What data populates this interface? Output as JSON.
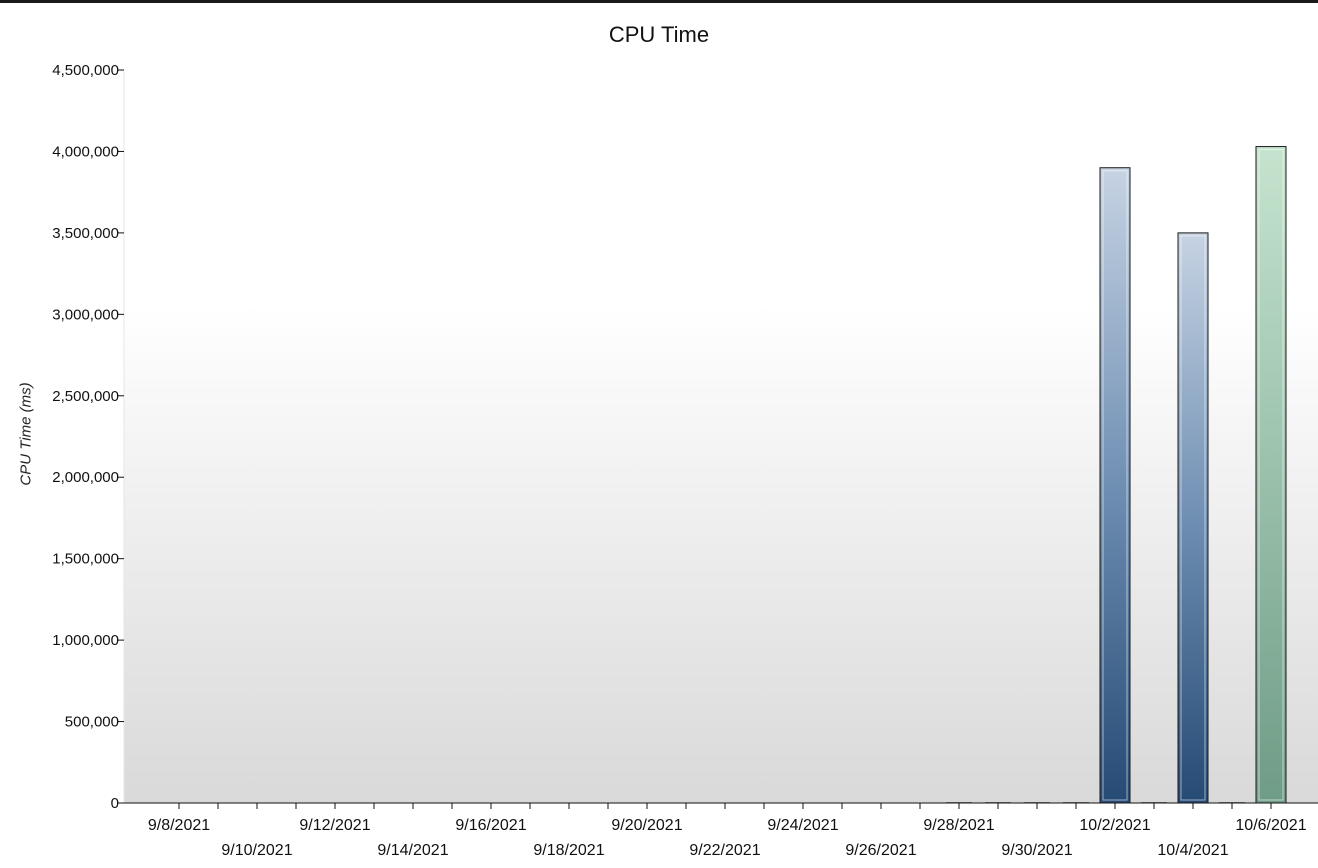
{
  "chart_data": {
    "type": "bar",
    "title": "CPU Time",
    "xlabel": "",
    "ylabel": "CPU Time (ms)",
    "ylim": [
      0,
      4500000
    ],
    "yticks": [
      0,
      500000,
      1000000,
      1500000,
      2000000,
      2500000,
      3000000,
      3500000,
      4000000,
      4500000
    ],
    "ytick_labels": [
      "0",
      "500,000",
      "1,000,000",
      "1,500,000",
      "2,000,000",
      "2,500,000",
      "3,000,000",
      "3,500,000",
      "4,000,000",
      "4,500,000"
    ],
    "xlim": [
      "2021-09-07",
      "2021-10-07"
    ],
    "xticks": [
      "2021-09-08",
      "2021-09-10",
      "2021-09-12",
      "2021-09-14",
      "2021-09-16",
      "2021-09-18",
      "2021-09-20",
      "2021-09-22",
      "2021-09-24",
      "2021-09-26",
      "2021-09-28",
      "2021-09-30",
      "2021-10-02",
      "2021-10-04",
      "2021-10-06"
    ],
    "xtick_labels": [
      "9/8/2021",
      "9/10/2021",
      "9/12/2021",
      "9/14/2021",
      "9/16/2021",
      "9/18/2021",
      "9/20/2021",
      "9/22/2021",
      "9/24/2021",
      "9/26/2021",
      "9/28/2021",
      "9/30/2021",
      "10/2/2021",
      "10/4/2021",
      "10/6/2021"
    ],
    "grid": false,
    "legend": "none",
    "bars": [
      {
        "date": "2021-09-28",
        "value": 0
      },
      {
        "date": "2021-09-29",
        "value": 0
      },
      {
        "date": "2021-09-30",
        "value": 0
      },
      {
        "date": "2021-10-01",
        "value": 0
      },
      {
        "date": "2021-10-02",
        "value": 3900000
      },
      {
        "date": "2021-10-03",
        "value": 0
      },
      {
        "date": "2021-10-04",
        "value": 3500000
      },
      {
        "date": "2021-10-05",
        "value": 0
      },
      {
        "date": "2021-10-06",
        "value": 4030000
      }
    ],
    "colors": {
      "bar_top": "#c6d3e3",
      "bar_bottom": "#254a74",
      "highlight_top": "#c5e4cf",
      "highlight_bottom": "#6f9c86",
      "plot_bg_top": "#ffffff",
      "plot_bg_bottom": "#d9d9d9"
    }
  }
}
